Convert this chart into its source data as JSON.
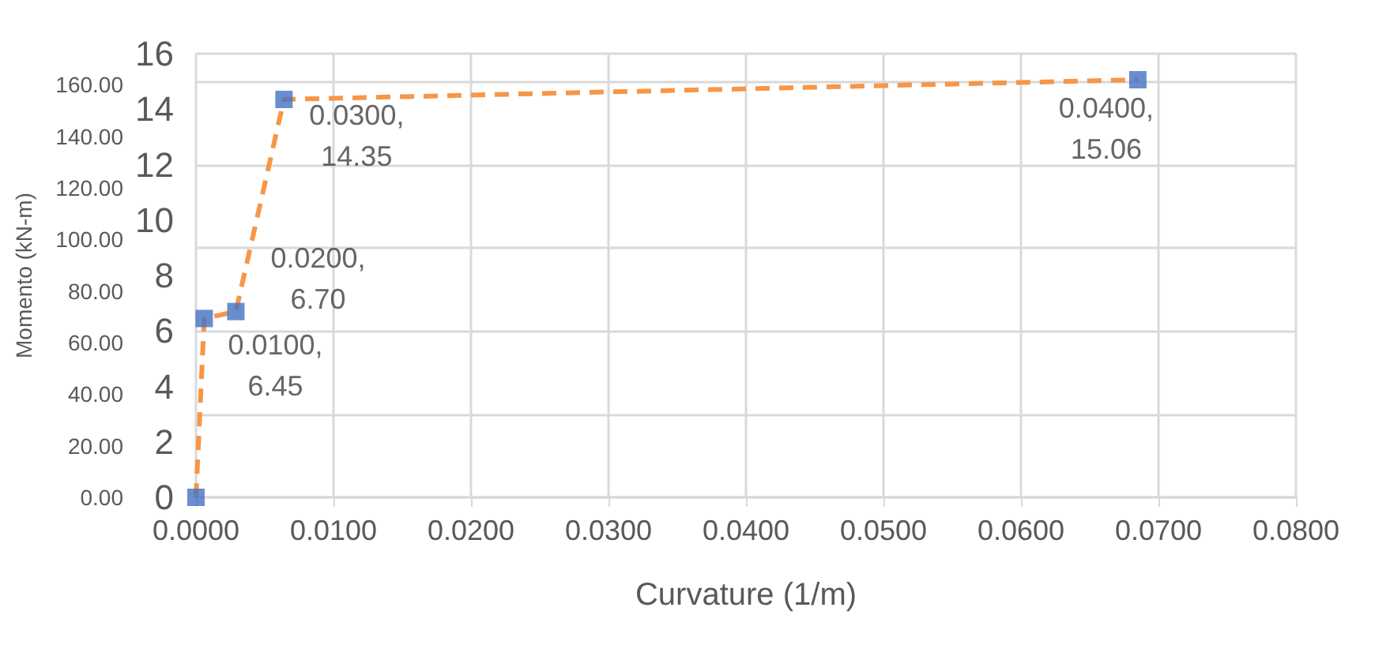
{
  "chart_data": {
    "type": "line",
    "xlabel": "Curvature (1/m)",
    "y2label": "Momento (kN-m)",
    "series": [
      {
        "type": "line",
        "color": "#f79646",
        "line_style": "dashed",
        "marker": "none",
        "x": [
          0,
          0.0006,
          0.0029,
          0.0064,
          0.0685
        ],
        "values": [
          0,
          6.45,
          6.7,
          14.35,
          15.06
        ]
      },
      {
        "type": "scatter",
        "color": "#4472c4",
        "marker": "square",
        "x": [
          0,
          0.0006,
          0.0029,
          0.0064,
          0.0685
        ],
        "values": [
          0,
          6.45,
          6.7,
          14.35,
          15.06
        ],
        "value_labels": [
          null,
          "0.0100,6.45",
          "0.0200,6.70",
          "0.0300,14.35",
          "0.0400,15.06"
        ]
      }
    ],
    "xlim": [
      0,
      0.08
    ],
    "xticks": [
      {
        "value": 0,
        "label": "0.0000"
      },
      {
        "value": 0.01,
        "label": "0.0100"
      },
      {
        "value": 0.02,
        "label": "0.0200"
      },
      {
        "value": 0.03,
        "label": "0.0300"
      },
      {
        "value": 0.04,
        "label": "0.0400"
      },
      {
        "value": 0.05,
        "label": "0.0500"
      },
      {
        "value": 0.06,
        "label": "0.0600"
      },
      {
        "value": 0.07,
        "label": "0.0700"
      },
      {
        "value": 0.08,
        "label": "0.0800"
      }
    ],
    "ylim": [
      0,
      16
    ],
    "yticks": [
      0,
      2,
      4,
      6,
      8,
      10,
      12,
      14,
      16
    ],
    "y2lim": [
      0,
      172
    ],
    "y2ticks": [
      {
        "value": 0,
        "label": "0.00"
      },
      {
        "value": 20,
        "label": "20.00"
      },
      {
        "value": 40,
        "label": "40.00"
      },
      {
        "value": 60,
        "label": "60.00"
      },
      {
        "value": 80,
        "label": "80.00"
      },
      {
        "value": 100,
        "label": "100.00"
      },
      {
        "value": 120,
        "label": "120.00"
      },
      {
        "value": 140,
        "label": "140.00"
      },
      {
        "value": 160,
        "label": "160.00"
      }
    ],
    "grid": true
  }
}
